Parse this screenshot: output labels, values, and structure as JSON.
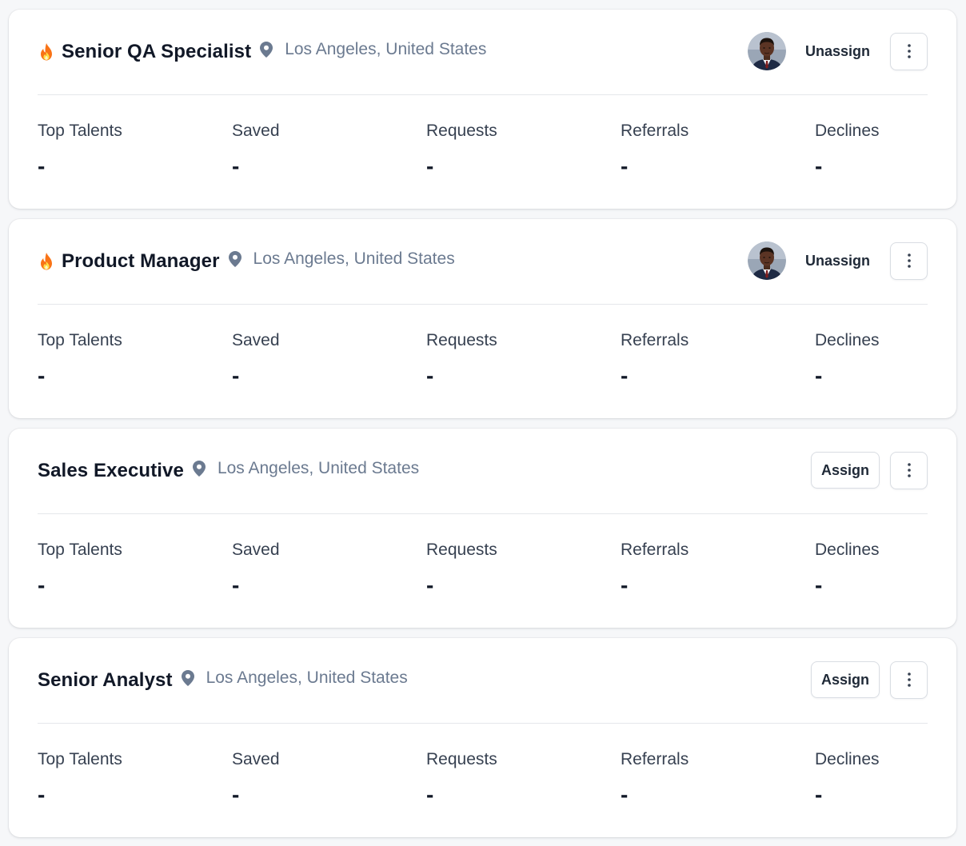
{
  "jobs": [
    {
      "title": "Senior QA Specialist",
      "hot": true,
      "location": "Los Angeles, United States",
      "assigned": true,
      "action_label": "Unassign",
      "stats": [
        {
          "label": "Top Talents",
          "value": "-"
        },
        {
          "label": "Saved",
          "value": "-"
        },
        {
          "label": "Requests",
          "value": "-"
        },
        {
          "label": "Referrals",
          "value": "-"
        },
        {
          "label": "Declines",
          "value": "-"
        }
      ]
    },
    {
      "title": "Product Manager",
      "hot": true,
      "location": "Los Angeles, United States",
      "assigned": true,
      "action_label": "Unassign",
      "stats": [
        {
          "label": "Top Talents",
          "value": "-"
        },
        {
          "label": "Saved",
          "value": "-"
        },
        {
          "label": "Requests",
          "value": "-"
        },
        {
          "label": "Referrals",
          "value": "-"
        },
        {
          "label": "Declines",
          "value": "-"
        }
      ]
    },
    {
      "title": "Sales Executive",
      "hot": false,
      "location": "Los Angeles, United States",
      "assigned": false,
      "action_label": "Assign",
      "stats": [
        {
          "label": "Top Talents",
          "value": "-"
        },
        {
          "label": "Saved",
          "value": "-"
        },
        {
          "label": "Requests",
          "value": "-"
        },
        {
          "label": "Referrals",
          "value": "-"
        },
        {
          "label": "Declines",
          "value": "-"
        }
      ]
    },
    {
      "title": "Senior Analyst",
      "hot": false,
      "location": "Los Angeles, United States",
      "assigned": false,
      "action_label": "Assign",
      "stats": [
        {
          "label": "Top Talents",
          "value": "-"
        },
        {
          "label": "Saved",
          "value": "-"
        },
        {
          "label": "Requests",
          "value": "-"
        },
        {
          "label": "Referrals",
          "value": "-"
        },
        {
          "label": "Declines",
          "value": "-"
        }
      ]
    }
  ],
  "icons": {
    "hot": "flame-icon",
    "location": "map-pin-icon",
    "menu": "more-vertical-icon",
    "assignee": "avatar"
  },
  "colors": {
    "page_background": "#f6f7f9",
    "card_background": "#ffffff",
    "title": "#111827",
    "location_text": "#6b7a90",
    "divider": "#e5e7eb",
    "button_border": "#d9dde3",
    "flame": "#f97316"
  }
}
